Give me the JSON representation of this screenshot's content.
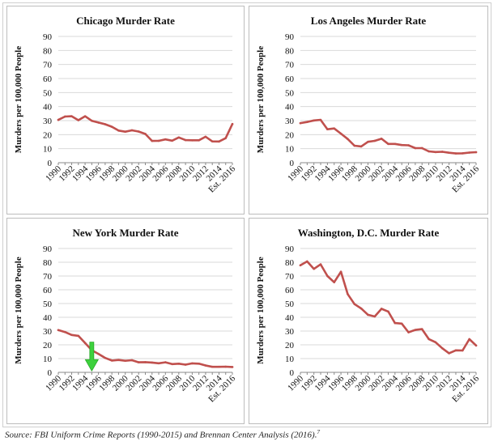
{
  "chart_data": [
    {
      "type": "line",
      "title": "Chicago Murder Rate",
      "ylabel": "Murders per 100,000 People",
      "xlabel": "",
      "ylim": [
        0,
        90
      ],
      "yticks": [
        0,
        10,
        20,
        30,
        40,
        50,
        60,
        70,
        80,
        90
      ],
      "x": [
        "1990",
        "1991",
        "1992",
        "1993",
        "1994",
        "1995",
        "1996",
        "1997",
        "1998",
        "1999",
        "2000",
        "2001",
        "2002",
        "2003",
        "2004",
        "2005",
        "2006",
        "2007",
        "2008",
        "2009",
        "2010",
        "2011",
        "2012",
        "2013",
        "2014",
        "2015",
        "Est. 2016"
      ],
      "xtick_labels": [
        "1990",
        "1992",
        "1994",
        "1996",
        "1998",
        "2000",
        "2002",
        "2004",
        "2006",
        "2008",
        "2010",
        "2012",
        "2014",
        "Est. 2016"
      ],
      "series": [
        {
          "name": "Chicago",
          "values": [
            30.5,
            32.9,
            33.1,
            30.3,
            33.1,
            29.9,
            28.6,
            27.4,
            25.6,
            22.9,
            22.1,
            23.1,
            22.2,
            20.5,
            15.5,
            15.6,
            16.6,
            15.7,
            18.0,
            16.1,
            16.0,
            16.0,
            18.5,
            15.2,
            15.1,
            17.5,
            27.6
          ]
        }
      ]
    },
    {
      "type": "line",
      "title": "Los Angeles Murder Rate",
      "ylabel": "Murders per 100,000 People",
      "xlabel": "",
      "ylim": [
        0,
        90
      ],
      "yticks": [
        0,
        10,
        20,
        30,
        40,
        50,
        60,
        70,
        80,
        90
      ],
      "x": [
        "1990",
        "1991",
        "1992",
        "1993",
        "1994",
        "1995",
        "1996",
        "1997",
        "1998",
        "1999",
        "2000",
        "2001",
        "2002",
        "2003",
        "2004",
        "2005",
        "2006",
        "2007",
        "2008",
        "2009",
        "2010",
        "2011",
        "2012",
        "2013",
        "2014",
        "2015",
        "Est. 2016"
      ],
      "xtick_labels": [
        "1990",
        "1992",
        "1994",
        "1996",
        "1998",
        "2000",
        "2002",
        "2004",
        "2006",
        "2008",
        "2010",
        "2012",
        "2014",
        "Est. 2016"
      ],
      "series": [
        {
          "name": "Los Angeles",
          "values": [
            28.2,
            29.0,
            30.1,
            30.5,
            23.8,
            24.4,
            20.7,
            16.9,
            12.1,
            11.6,
            14.9,
            15.6,
            17.1,
            13.4,
            13.4,
            12.6,
            12.4,
            10.4,
            10.4,
            8.1,
            7.6,
            7.8,
            7.1,
            6.6,
            6.7,
            7.2,
            7.5
          ]
        }
      ]
    },
    {
      "type": "line",
      "title": "New York Murder Rate",
      "ylabel": "Murders per 100,000 People",
      "xlabel": "",
      "ylim": [
        0,
        90
      ],
      "yticks": [
        0,
        10,
        20,
        30,
        40,
        50,
        60,
        70,
        80,
        90
      ],
      "x": [
        "1990",
        "1991",
        "1992",
        "1993",
        "1994",
        "1995",
        "1996",
        "1997",
        "1998",
        "1999",
        "2000",
        "2001",
        "2002",
        "2003",
        "2004",
        "2005",
        "2006",
        "2007",
        "2008",
        "2009",
        "2010",
        "2011",
        "2012",
        "2013",
        "2014",
        "2015",
        "Est. 2016"
      ],
      "xtick_labels": [
        "1990",
        "1992",
        "1994",
        "1996",
        "1998",
        "2000",
        "2002",
        "2004",
        "2006",
        "2008",
        "2010",
        "2012",
        "2014",
        "Est. 2016"
      ],
      "series": [
        {
          "name": "New York",
          "values": [
            30.7,
            29.3,
            27.2,
            26.5,
            21.3,
            16.1,
            13.4,
            10.5,
            8.6,
            9.0,
            8.4,
            8.8,
            7.3,
            7.4,
            7.1,
            6.6,
            7.3,
            6.0,
            6.3,
            5.6,
            6.5,
            6.3,
            5.0,
            4.0,
            4.0,
            4.1,
            3.9
          ]
        }
      ]
    },
    {
      "type": "line",
      "title": "Washington, D.C. Murder Rate",
      "ylabel": "Murders per 100,000 People",
      "xlabel": "",
      "ylim": [
        0,
        90
      ],
      "yticks": [
        0,
        10,
        20,
        30,
        40,
        50,
        60,
        70,
        80,
        90
      ],
      "x": [
        "1990",
        "1991",
        "1992",
        "1993",
        "1994",
        "1995",
        "1996",
        "1997",
        "1998",
        "1999",
        "2000",
        "2001",
        "2002",
        "2003",
        "2004",
        "2005",
        "2006",
        "2007",
        "2008",
        "2009",
        "2010",
        "2011",
        "2012",
        "2013",
        "2014",
        "2015",
        "Est. 2016"
      ],
      "xtick_labels": [
        "1990",
        "1992",
        "1994",
        "1996",
        "1998",
        "2000",
        "2002",
        "2004",
        "2006",
        "2008",
        "2010",
        "2012",
        "2014",
        "Est. 2016"
      ],
      "series": [
        {
          "name": "Washington, D.C.",
          "values": [
            77.8,
            80.6,
            75.2,
            78.5,
            70.0,
            65.5,
            73.1,
            56.9,
            49.6,
            46.4,
            41.8,
            40.6,
            46.2,
            44.2,
            35.8,
            35.4,
            29.1,
            30.8,
            31.4,
            24.2,
            21.9,
            17.5,
            13.9,
            16.0,
            15.9,
            24.1,
            19.5
          ]
        }
      ]
    }
  ],
  "annotation": {
    "label": "down-arrow",
    "color": "#3dd13d",
    "chart": 2,
    "x_label": "1995",
    "y_from": 22,
    "y_to": 1
  },
  "colors": {
    "line": "#c0504d",
    "grid": "#d9d9d9",
    "axis": "#888888"
  },
  "source": {
    "text": "Source: FBI Uniform Crime Reports (1990-2015) and Brennan Center Analysis (2016).",
    "note": "7"
  }
}
